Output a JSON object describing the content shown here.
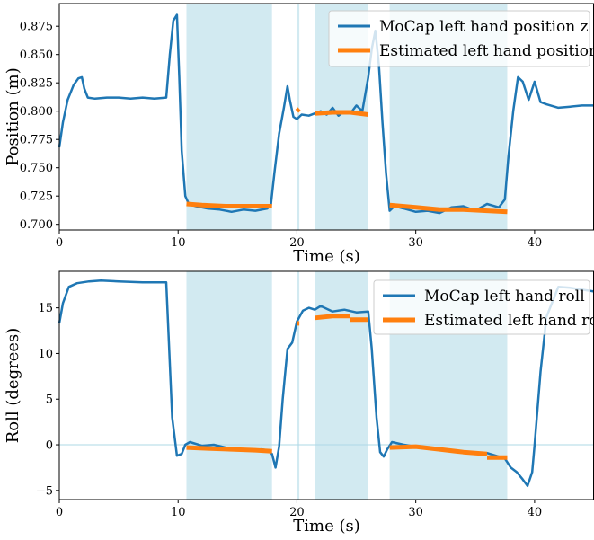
{
  "chart_data": [
    {
      "type": "line",
      "xlabel": "Time (s)",
      "ylabel": "Position (m)",
      "xlim": [
        0,
        45
      ],
      "ylim": [
        0.695,
        0.895
      ],
      "xticks": [
        0,
        10,
        20,
        30,
        40
      ],
      "xtick_labels": [
        "0",
        "10",
        "20",
        "30",
        "40"
      ],
      "yticks": [
        0.7,
        0.725,
        0.75,
        0.775,
        0.8,
        0.825,
        0.85,
        0.875
      ],
      "ytick_labels": [
        "0.700",
        "0.725",
        "0.750",
        "0.775",
        "0.800",
        "0.825",
        "0.850",
        "0.875"
      ],
      "legend": "upper right",
      "legend_entries": [
        "MoCap left hand position z",
        "Estimated left hand position z"
      ],
      "shaded_intervals": [
        [
          10.7,
          17.9
        ],
        [
          20.0,
          20.2
        ],
        [
          21.5,
          26.0
        ],
        [
          27.8,
          37.7
        ]
      ],
      "series": [
        {
          "name": "MoCap left hand position z",
          "color": "#1f77b4",
          "x": [
            0,
            0.3,
            0.7,
            1.2,
            1.6,
            1.9,
            2.1,
            2.4,
            3.0,
            4.0,
            5.0,
            6.0,
            7.0,
            8.0,
            9.0,
            9.3,
            9.6,
            9.9,
            10.1,
            10.3,
            10.6,
            10.9,
            11.5,
            12.5,
            13.5,
            14.5,
            15.5,
            16.5,
            17.5,
            17.8,
            18.1,
            18.5,
            18.9,
            19.2,
            19.4,
            19.7,
            20.0,
            20.4,
            21.0,
            22.0,
            22.5,
            23.0,
            23.5,
            24.0,
            24.5,
            25.0,
            25.5,
            26.0,
            26.3,
            26.6,
            26.9,
            27.2,
            27.5,
            27.8,
            28.2,
            29.0,
            30.0,
            31.0,
            32.0,
            33.0,
            34.0,
            35.0,
            36.0,
            37.0,
            37.5,
            37.8,
            38.2,
            38.6,
            39.0,
            39.5,
            40.0,
            40.5,
            41.0,
            42.0,
            43.0,
            44.0,
            45.0
          ],
          "y": [
            0.768,
            0.79,
            0.81,
            0.823,
            0.829,
            0.83,
            0.82,
            0.812,
            0.811,
            0.812,
            0.812,
            0.811,
            0.812,
            0.811,
            0.812,
            0.85,
            0.88,
            0.885,
            0.83,
            0.765,
            0.725,
            0.718,
            0.716,
            0.714,
            0.713,
            0.711,
            0.713,
            0.712,
            0.714,
            0.717,
            0.745,
            0.78,
            0.803,
            0.822,
            0.81,
            0.795,
            0.793,
            0.797,
            0.796,
            0.8,
            0.797,
            0.803,
            0.796,
            0.8,
            0.798,
            0.805,
            0.8,
            0.83,
            0.855,
            0.871,
            0.84,
            0.79,
            0.745,
            0.712,
            0.716,
            0.714,
            0.711,
            0.712,
            0.71,
            0.715,
            0.716,
            0.712,
            0.718,
            0.715,
            0.722,
            0.76,
            0.8,
            0.83,
            0.826,
            0.81,
            0.826,
            0.808,
            0.806,
            0.803,
            0.804,
            0.805,
            0.805
          ]
        },
        {
          "name": "Estimated left hand position z",
          "color": "#ff7f0e",
          "segments": [
            {
              "x": [
                10.7,
                12.0,
                14.0,
                16.0,
                17.9
              ],
              "y": [
                0.718,
                0.717,
                0.716,
                0.716,
                0.716
              ]
            },
            {
              "x": [
                20.0,
                20.2
              ],
              "y": [
                0.8,
                0.802
              ]
            },
            {
              "x": [
                21.5,
                23.0,
                24.5,
                26.0
              ],
              "y": [
                0.798,
                0.799,
                0.799,
                0.797
              ]
            },
            {
              "x": [
                27.8,
                30.0,
                32.0,
                34.0,
                36.0,
                37.7
              ],
              "y": [
                0.717,
                0.715,
                0.713,
                0.713,
                0.712,
                0.711
              ]
            }
          ]
        }
      ]
    },
    {
      "type": "line",
      "xlabel": "Time (s)",
      "ylabel": "Roll (degrees)",
      "xlim": [
        0,
        45
      ],
      "ylim": [
        -6,
        19
      ],
      "xticks": [
        0,
        10,
        20,
        30,
        40
      ],
      "xtick_labels": [
        "0",
        "10",
        "20",
        "30",
        "40"
      ],
      "yticks": [
        -5,
        0,
        5,
        10,
        15
      ],
      "ytick_labels": [
        "−5",
        "0",
        "5",
        "10",
        "15"
      ],
      "legend": "upper right",
      "legend_entries": [
        "MoCap left hand roll",
        "Estimated left hand roll"
      ],
      "shaded_intervals": [
        [
          10.7,
          17.9
        ],
        [
          20.0,
          20.2
        ],
        [
          21.5,
          26.0
        ],
        [
          27.8,
          37.7
        ]
      ],
      "series": [
        {
          "name": "MoCap left hand roll",
          "color": "#1f77b4",
          "x": [
            0,
            0.3,
            0.8,
            1.5,
            2.5,
            3.5,
            5.0,
            7.0,
            8.5,
            9.0,
            9.2,
            9.5,
            9.9,
            10.3,
            10.6,
            11.0,
            12.0,
            13.0,
            14.0,
            15.0,
            16.0,
            17.0,
            17.5,
            17.9,
            18.2,
            18.5,
            18.8,
            19.2,
            19.6,
            20.0,
            20.5,
            21.0,
            21.5,
            22.0,
            23.0,
            24.0,
            25.0,
            26.0,
            26.3,
            26.7,
            27.0,
            27.3,
            27.6,
            28.0,
            29.0,
            30.0,
            31.0,
            32.0,
            33.0,
            34.0,
            35.0,
            36.0,
            37.0,
            37.5,
            38.0,
            38.5,
            39.0,
            39.4,
            39.8,
            40.0,
            40.5,
            41.0,
            42.0,
            43.0,
            44.0,
            45.0
          ],
          "y": [
            13.3,
            15.5,
            17.3,
            17.7,
            17.9,
            18.0,
            17.9,
            17.8,
            17.8,
            17.8,
            12.0,
            3.0,
            -1.2,
            -1.0,
            0.0,
            0.3,
            -0.1,
            0.0,
            -0.3,
            -0.4,
            -0.6,
            -0.5,
            -0.6,
            -1.0,
            -2.5,
            -0.2,
            5.0,
            10.5,
            11.2,
            13.5,
            14.7,
            15.0,
            14.8,
            15.2,
            14.6,
            14.8,
            14.5,
            14.6,
            10.5,
            3.0,
            -0.8,
            -1.3,
            -0.5,
            0.3,
            0.0,
            -0.2,
            -0.3,
            -0.5,
            -0.6,
            -0.8,
            -1.0,
            -0.9,
            -1.3,
            -1.5,
            -2.5,
            -3.0,
            -3.8,
            -4.5,
            -3.0,
            0.0,
            8.0,
            14.0,
            17.3,
            17.2,
            17.0,
            16.8
          ]
        },
        {
          "name": "Estimated left hand roll",
          "color": "#ff7f0e",
          "segments": [
            {
              "x": [
                10.7,
                12.5,
                14.5,
                16.5,
                17.9
              ],
              "y": [
                -0.3,
                -0.4,
                -0.5,
                -0.6,
                -0.7
              ]
            },
            {
              "x": [
                20.0,
                20.2
              ],
              "y": [
                13.3,
                13.3
              ]
            },
            {
              "x": [
                21.5,
                23.0,
                24.5
              ],
              "y": [
                13.9,
                14.1,
                14.1
              ]
            },
            {
              "x": [
                24.5,
                26.0
              ],
              "y": [
                13.7,
                13.7
              ]
            },
            {
              "x": [
                27.8,
                30.0,
                32.0,
                34.0,
                36.0
              ],
              "y": [
                -0.3,
                -0.2,
                -0.5,
                -0.8,
                -1.0
              ]
            },
            {
              "x": [
                36.0,
                37.7
              ],
              "y": [
                -1.4,
                -1.4
              ]
            }
          ]
        }
      ]
    }
  ]
}
